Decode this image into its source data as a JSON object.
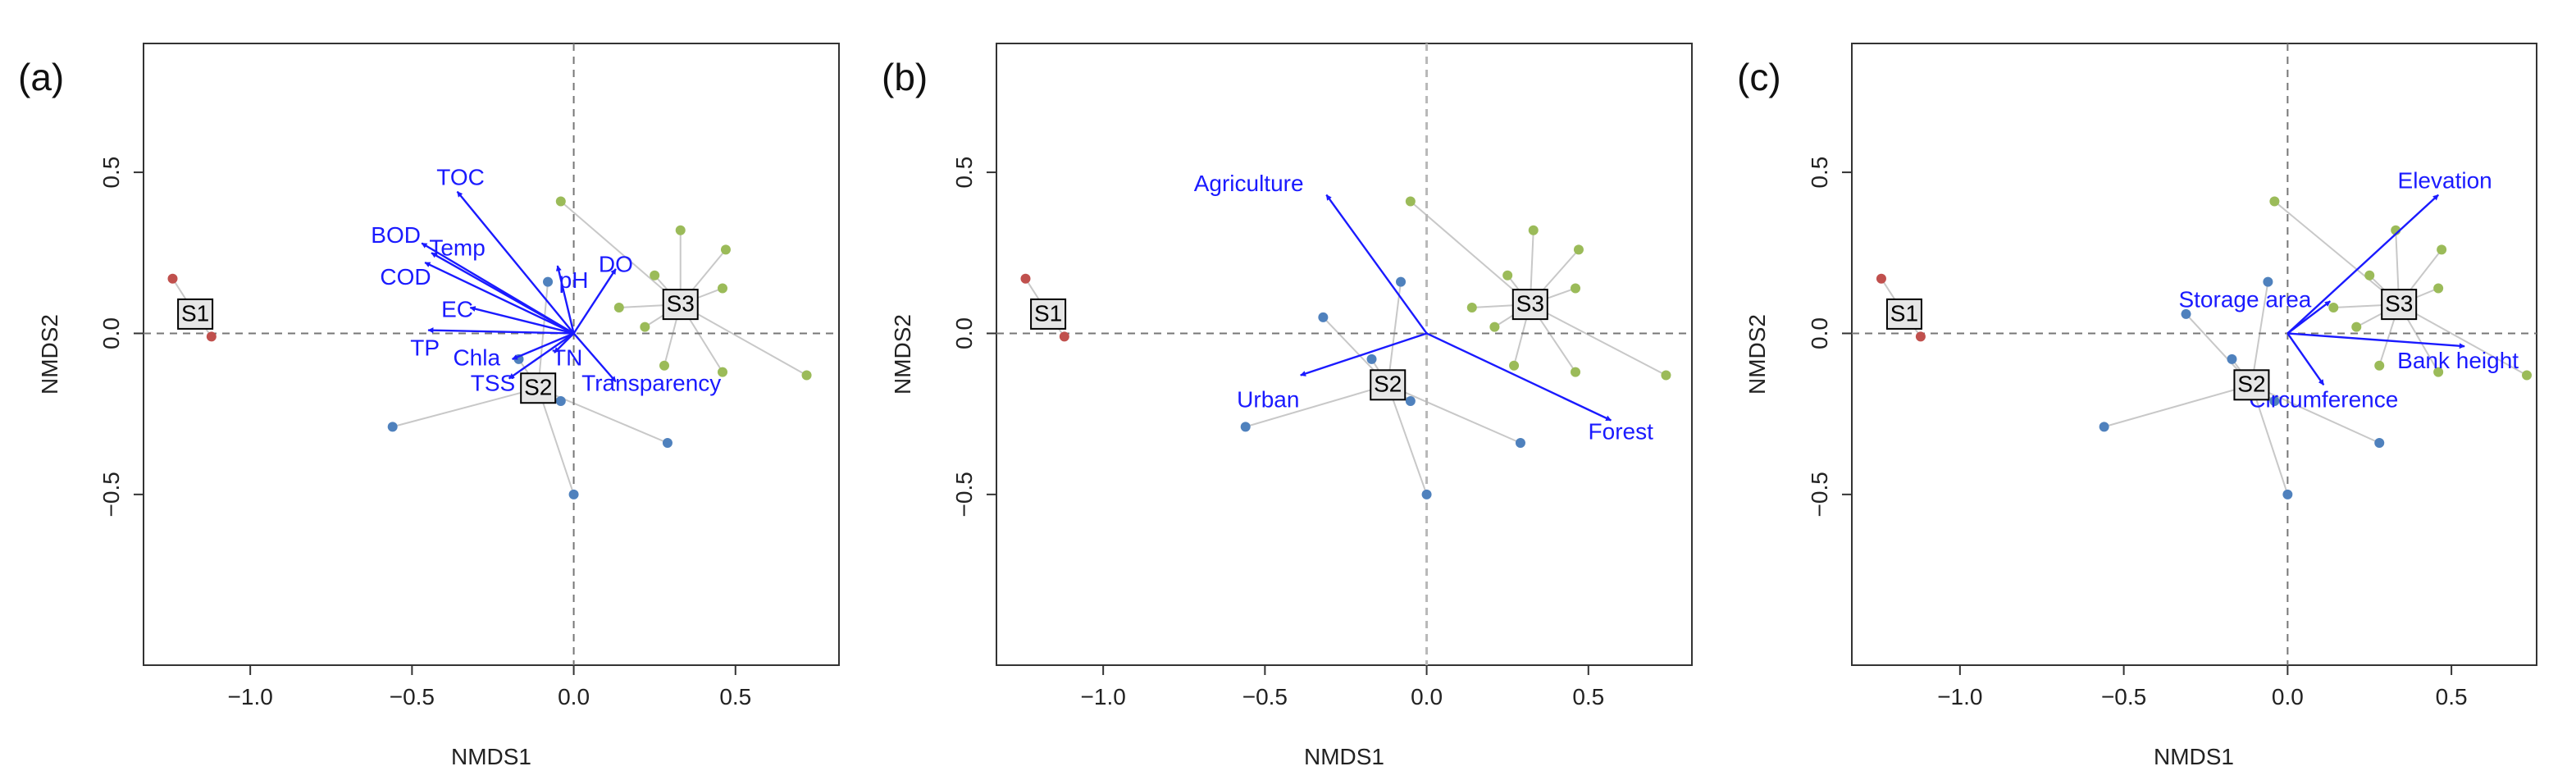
{
  "colors": {
    "S1": "#c0504d",
    "S2": "#4f81bd",
    "S3": "#9bbb59",
    "vector": "#1a1aff",
    "spider": "#c8c8c8",
    "centroid_fill": "#e6e6e6"
  },
  "chart_data": [
    {
      "type": "scatter",
      "panel_label": "(a)",
      "xlabel": "NMDS1",
      "ylabel": "NMDS2",
      "xlim": [
        -1.33,
        0.82
      ],
      "ylim": [
        -1.03,
        0.9
      ],
      "xticks": [
        -1.0,
        -0.5,
        0.0,
        0.5
      ],
      "xtick_labels": [
        "−1.0",
        "−0.5",
        "0.0",
        "0.5"
      ],
      "yticks": [
        -0.5,
        0.0,
        0.5
      ],
      "ytick_labels": [
        "−0.5",
        "0.0",
        "0.5"
      ],
      "groups": [
        {
          "name": "S1",
          "centroid": [
            -1.17,
            0.06
          ],
          "points": [
            [
              -1.24,
              0.17
            ],
            [
              -1.12,
              -0.01
            ]
          ]
        },
        {
          "name": "S2",
          "centroid": [
            -0.11,
            -0.17
          ],
          "points": [
            [
              -0.08,
              0.16
            ],
            [
              -0.17,
              -0.08
            ],
            [
              -0.04,
              -0.21
            ],
            [
              -0.56,
              -0.29
            ],
            [
              0.29,
              -0.34
            ],
            [
              0.0,
              -0.5
            ]
          ]
        },
        {
          "name": "S3",
          "centroid": [
            0.33,
            0.09
          ],
          "points": [
            [
              -0.04,
              0.41
            ],
            [
              0.33,
              0.32
            ],
            [
              0.47,
              0.26
            ],
            [
              0.25,
              0.18
            ],
            [
              0.14,
              0.08
            ],
            [
              0.22,
              0.02
            ],
            [
              0.46,
              0.14
            ],
            [
              0.28,
              -0.1
            ],
            [
              0.46,
              -0.12
            ],
            [
              0.72,
              -0.13
            ]
          ]
        }
      ],
      "vectors": [
        {
          "label": "TOC",
          "x": -0.36,
          "y": 0.44,
          "lx": -0.35,
          "ly": 0.48
        },
        {
          "label": "BOD",
          "x": -0.47,
          "y": 0.28,
          "lx": -0.55,
          "ly": 0.3
        },
        {
          "label": "Temp",
          "x": -0.44,
          "y": 0.25,
          "lx": -0.36,
          "ly": 0.26
        },
        {
          "label": "COD",
          "x": -0.46,
          "y": 0.22,
          "lx": -0.52,
          "ly": 0.17
        },
        {
          "label": "pH",
          "x": -0.05,
          "y": 0.21,
          "lx": 0.0,
          "ly": 0.16
        },
        {
          "label": "DO",
          "x": 0.13,
          "y": 0.2,
          "lx": 0.13,
          "ly": 0.21
        },
        {
          "label": "EC",
          "x": -0.32,
          "y": 0.08,
          "lx": -0.36,
          "ly": 0.07
        },
        {
          "label": "TP",
          "x": -0.45,
          "y": 0.01,
          "lx": -0.46,
          "ly": -0.05
        },
        {
          "label": "Chla",
          "x": -0.19,
          "y": -0.08,
          "lx": -0.3,
          "ly": -0.08
        },
        {
          "label": "TN",
          "x": -0.06,
          "y": -0.06,
          "lx": -0.02,
          "ly": -0.08
        },
        {
          "label": "TSS",
          "x": -0.2,
          "y": -0.14,
          "lx": -0.25,
          "ly": -0.16
        },
        {
          "label": "Transparency",
          "x": 0.13,
          "y": -0.15,
          "lx": 0.24,
          "ly": -0.16
        }
      ]
    },
    {
      "type": "scatter",
      "panel_label": "(b)",
      "xlabel": "NMDS1",
      "ylabel": "NMDS2",
      "xlim": [
        -1.33,
        0.82
      ],
      "ylim": [
        -1.03,
        0.9
      ],
      "xticks": [
        -1.0,
        -0.5,
        0.0,
        0.5
      ],
      "xtick_labels": [
        "−1.0",
        "−0.5",
        "0.0",
        "0.5"
      ],
      "yticks": [
        -0.5,
        0.0,
        0.5
      ],
      "ytick_labels": [
        "−0.5",
        "0.0",
        "0.5"
      ],
      "groups": [
        {
          "name": "S1",
          "centroid": [
            -1.17,
            0.06
          ],
          "points": [
            [
              -1.24,
              0.17
            ],
            [
              -1.12,
              -0.01
            ]
          ]
        },
        {
          "name": "S2",
          "centroid": [
            -0.12,
            -0.16
          ],
          "points": [
            [
              -0.08,
              0.16
            ],
            [
              -0.32,
              0.05
            ],
            [
              -0.17,
              -0.08
            ],
            [
              -0.05,
              -0.21
            ],
            [
              -0.56,
              -0.29
            ],
            [
              0.29,
              -0.34
            ],
            [
              0.0,
              -0.5
            ]
          ]
        },
        {
          "name": "S3",
          "centroid": [
            0.32,
            0.09
          ],
          "points": [
            [
              -0.05,
              0.41
            ],
            [
              0.33,
              0.32
            ],
            [
              0.47,
              0.26
            ],
            [
              0.25,
              0.18
            ],
            [
              0.14,
              0.08
            ],
            [
              0.21,
              0.02
            ],
            [
              0.46,
              0.14
            ],
            [
              0.27,
              -0.1
            ],
            [
              0.46,
              -0.12
            ],
            [
              0.74,
              -0.13
            ]
          ]
        }
      ],
      "vectors": [
        {
          "label": "Agriculture",
          "x": -0.31,
          "y": 0.43,
          "lx": -0.55,
          "ly": 0.46
        },
        {
          "label": "Urban",
          "x": -0.39,
          "y": -0.13,
          "lx": -0.49,
          "ly": -0.21
        },
        {
          "label": "Forest",
          "x": 0.57,
          "y": -0.27,
          "lx": 0.6,
          "ly": -0.31
        }
      ]
    },
    {
      "type": "scatter",
      "panel_label": "(c)",
      "xlabel": "NMDS1",
      "ylabel": "NMDS2",
      "xlim": [
        -1.33,
        0.76
      ],
      "ylim": [
        -1.03,
        0.9
      ],
      "xticks": [
        -1.0,
        -0.5,
        0.0,
        0.5
      ],
      "xtick_labels": [
        "−1.0",
        "−0.5",
        "0.0",
        "0.5"
      ],
      "yticks": [
        -0.5,
        0.0,
        0.5
      ],
      "ytick_labels": [
        "−0.5",
        "0.0",
        "0.5"
      ],
      "groups": [
        {
          "name": "S1",
          "centroid": [
            -1.17,
            0.06
          ],
          "points": [
            [
              -1.24,
              0.17
            ],
            [
              -1.12,
              -0.01
            ]
          ]
        },
        {
          "name": "S2",
          "centroid": [
            -0.11,
            -0.16
          ],
          "points": [
            [
              -0.06,
              0.16
            ],
            [
              -0.31,
              0.06
            ],
            [
              -0.17,
              -0.08
            ],
            [
              -0.04,
              -0.21
            ],
            [
              -0.56,
              -0.29
            ],
            [
              0.28,
              -0.34
            ],
            [
              0.0,
              -0.5
            ]
          ]
        },
        {
          "name": "S3",
          "centroid": [
            0.34,
            0.09
          ],
          "points": [
            [
              -0.04,
              0.41
            ],
            [
              0.33,
              0.32
            ],
            [
              0.47,
              0.26
            ],
            [
              0.25,
              0.18
            ],
            [
              0.14,
              0.08
            ],
            [
              0.21,
              0.02
            ],
            [
              0.46,
              0.14
            ],
            [
              0.28,
              -0.1
            ],
            [
              0.46,
              -0.12
            ],
            [
              0.73,
              -0.13
            ]
          ]
        }
      ],
      "vectors": [
        {
          "label": "Elevation",
          "x": 0.46,
          "y": 0.43,
          "lx": 0.48,
          "ly": 0.47
        },
        {
          "label": "Storage area",
          "x": 0.13,
          "y": 0.1,
          "lx": -0.13,
          "ly": 0.1
        },
        {
          "label": "Bank height",
          "x": 0.54,
          "y": -0.04,
          "lx": 0.52,
          "ly": -0.09
        },
        {
          "label": "Circumference",
          "x": 0.11,
          "y": -0.16,
          "lx": 0.11,
          "ly": -0.21
        }
      ]
    }
  ]
}
